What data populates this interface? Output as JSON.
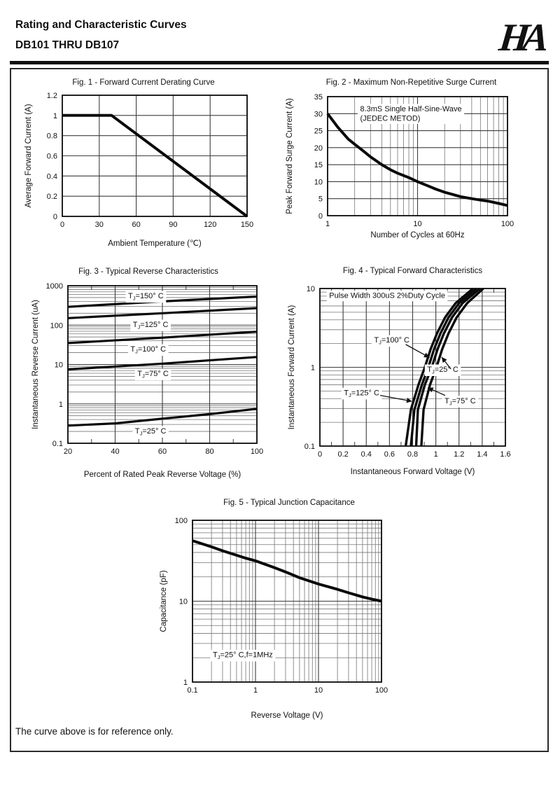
{
  "page": {
    "header": {
      "title": "Rating and Characteristic Curves",
      "subtitle": "DB101 THRU DB107",
      "logo_text": "HA"
    },
    "footer_note": "The curve above is for reference only."
  },
  "chart_data": [
    {
      "type": "line",
      "title": "Fig. 1 - Forward Current Derating Curve",
      "xlabel": "Ambient Temperature (℃)",
      "ylabel": "Average Forward Current (A)",
      "x": {
        "scale": "linear",
        "min": 0,
        "max": 150,
        "ticks": [
          [
            0,
            "0"
          ],
          [
            30,
            "30"
          ],
          [
            60,
            "60"
          ],
          [
            90,
            "90"
          ],
          [
            120,
            "120"
          ],
          [
            150,
            "150"
          ]
        ]
      },
      "y": {
        "scale": "linear",
        "min": 0,
        "max": 1.2,
        "ticks": [
          [
            0,
            "0"
          ],
          [
            0.2,
            "0.2"
          ],
          [
            0.4,
            "0.4"
          ],
          [
            0.6,
            "0.6"
          ],
          [
            0.8,
            "0.8"
          ],
          [
            1,
            "1"
          ],
          [
            1.2,
            "1.2"
          ]
        ]
      },
      "grid": true,
      "series": [
        {
          "name": "average-forward-current",
          "stroke_width": 4,
          "points": [
            [
              0,
              1
            ],
            [
              40,
              1
            ],
            [
              150,
              0
            ]
          ]
        }
      ],
      "annotations": []
    },
    {
      "type": "line",
      "title": "Fig. 2 - Maximum Non-Repetitive Surge Current",
      "xlabel": "Number of Cycles at 60Hz",
      "ylabel": "Peak Forward Surge Current (A)",
      "x": {
        "scale": "log",
        "min": 1,
        "max": 100,
        "minor": "lines",
        "ticks": [
          [
            1,
            "1"
          ],
          [
            10,
            "10"
          ],
          [
            100,
            "100"
          ]
        ]
      },
      "y": {
        "scale": "linear",
        "min": 0,
        "max": 35,
        "ticks": [
          [
            0,
            "0"
          ],
          [
            5,
            "5"
          ],
          [
            10,
            "10"
          ],
          [
            15,
            "15"
          ],
          [
            20,
            "20"
          ],
          [
            25,
            "25"
          ],
          [
            30,
            "30"
          ],
          [
            35,
            "35"
          ]
        ]
      },
      "grid": true,
      "series": [
        {
          "name": "peak-forward-surge-current",
          "stroke_width": 4,
          "points": [
            [
              1,
              30
            ],
            [
              1.3,
              26
            ],
            [
              1.7,
              22.5
            ],
            [
              2,
              21
            ],
            [
              2.5,
              19
            ],
            [
              3,
              17.3
            ],
            [
              4,
              15
            ],
            [
              5,
              13.5
            ],
            [
              6,
              12.5
            ],
            [
              8,
              11.2
            ],
            [
              10,
              10
            ],
            [
              13,
              8.8
            ],
            [
              16,
              7.8
            ],
            [
              20,
              6.9
            ],
            [
              25,
              6.2
            ],
            [
              30,
              5.6
            ],
            [
              40,
              5
            ],
            [
              50,
              4.6
            ],
            [
              60,
              4.3
            ],
            [
              80,
              3.6
            ],
            [
              100,
              3
            ]
          ]
        }
      ],
      "annotations": [
        {
          "text": "8.3mS Single Half-Sine-Wave\n(JEDEC METOD)",
          "x": 2.3,
          "y": 31.5,
          "anchor": "start",
          "bg": true
        }
      ]
    },
    {
      "type": "line",
      "title": "Fig. 3 - Typical Reverse Characteristics",
      "xlabel": "Percent of Rated Peak Reverse Voltage (%)",
      "ylabel": "Instantaneous Reverse Current (uA)",
      "x": {
        "scale": "linear",
        "min": 20,
        "max": 100,
        "minor_step": 10,
        "ticks": [
          [
            20,
            "20"
          ],
          [
            40,
            "40"
          ],
          [
            60,
            "60"
          ],
          [
            80,
            "80"
          ],
          [
            100,
            "100"
          ]
        ]
      },
      "y": {
        "scale": "log",
        "min": 0.1,
        "max": 1000,
        "minor": "lines",
        "ticks": [
          [
            0.1,
            "0.1"
          ],
          [
            1,
            "1"
          ],
          [
            10,
            "10"
          ],
          [
            100,
            "100"
          ],
          [
            1000,
            "1000"
          ]
        ]
      },
      "grid": true,
      "series": [
        {
          "name": "tj-150c",
          "stroke_width": 3.2,
          "points": [
            [
              20,
              290
            ],
            [
              60,
              400
            ],
            [
              100,
              530
            ]
          ]
        },
        {
          "name": "tj-125c",
          "stroke_width": 3.2,
          "points": [
            [
              20,
              150
            ],
            [
              60,
              200
            ],
            [
              100,
              270
            ]
          ]
        },
        {
          "name": "tj-100c",
          "stroke_width": 3.2,
          "points": [
            [
              20,
              35
            ],
            [
              60,
              48
            ],
            [
              100,
              68
            ]
          ]
        },
        {
          "name": "tj-75c",
          "stroke_width": 3.2,
          "points": [
            [
              20,
              7.5
            ],
            [
              60,
              10.5
            ],
            [
              100,
              15.5
            ]
          ]
        },
        {
          "name": "tj-25c",
          "stroke_width": 3.2,
          "points": [
            [
              20,
              0.28
            ],
            [
              40,
              0.32
            ],
            [
              60,
              0.42
            ],
            [
              80,
              0.55
            ],
            [
              100,
              0.75
            ]
          ]
        }
      ],
      "annotations": [
        {
          "text": "T~J~=150°  C",
          "x": 53,
          "y": 560,
          "bg": true
        },
        {
          "text": "T~J~=125°  C",
          "x": 55,
          "y": 105,
          "bg": true
        },
        {
          "text": "T~J~=100°  C",
          "x": 54,
          "y": 25,
          "bg": true
        },
        {
          "text": "T~J~=75°  C",
          "x": 56,
          "y": 6,
          "bg": true
        },
        {
          "text": "T~J~=25°  C",
          "x": 55,
          "y": 0.21,
          "bg": true
        }
      ]
    },
    {
      "type": "line",
      "title": "Fig. 4 - Typical Forward Characteristics",
      "xlabel": "Instantaneous Forward Voltage (V)",
      "ylabel": "Instantaneous Forward Current (A)",
      "x": {
        "scale": "linear",
        "min": 0,
        "max": 1.6,
        "minor_step": 0.1,
        "ticks": [
          [
            0,
            "0"
          ],
          [
            0.2,
            "0.2"
          ],
          [
            0.4,
            "0.4"
          ],
          [
            0.6,
            "0.6"
          ],
          [
            0.8,
            "0.8"
          ],
          [
            1,
            "1"
          ],
          [
            1.2,
            "1.2"
          ],
          [
            1.4,
            "1.4"
          ],
          [
            1.6,
            "1.6"
          ]
        ]
      },
      "y": {
        "scale": "log",
        "min": 0.1,
        "max": 10,
        "minor": "lines",
        "ticks": [
          [
            0.1,
            "0.1"
          ],
          [
            1,
            "1"
          ],
          [
            10,
            "10"
          ]
        ]
      },
      "grid": true,
      "series": [
        {
          "name": "tj-125c",
          "stroke_width": 3.4,
          "points": [
            [
              0.74,
              0.1
            ],
            [
              0.785,
              0.29
            ],
            [
              0.85,
              0.6
            ],
            [
              0.905,
              1
            ],
            [
              0.955,
              1.7
            ],
            [
              1.01,
              2.7
            ],
            [
              1.08,
              4.3
            ],
            [
              1.17,
              6.5
            ],
            [
              1.32,
              10
            ]
          ]
        },
        {
          "name": "tj-100c",
          "stroke_width": 3.4,
          "points": [
            [
              0.785,
              0.1
            ],
            [
              0.815,
              0.29
            ],
            [
              0.88,
              0.6
            ],
            [
              0.935,
              1
            ],
            [
              0.985,
              1.7
            ],
            [
              1.04,
              2.7
            ],
            [
              1.11,
              4.3
            ],
            [
              1.2,
              6.5
            ],
            [
              1.35,
              10
            ]
          ]
        },
        {
          "name": "tj-75c",
          "stroke_width": 3.4,
          "points": [
            [
              0.83,
              0.1
            ],
            [
              0.845,
              0.29
            ],
            [
              0.905,
              0.6
            ],
            [
              0.965,
              1
            ],
            [
              1.015,
              1.7
            ],
            [
              1.07,
              2.7
            ],
            [
              1.14,
              4.3
            ],
            [
              1.23,
              6.5
            ],
            [
              1.38,
              10
            ]
          ]
        },
        {
          "name": "tj-25c",
          "stroke_width": 3.4,
          "points": [
            [
              0.875,
              0.1
            ],
            [
              0.894,
              0.29
            ],
            [
              0.95,
              0.6
            ],
            [
              1.005,
              1
            ],
            [
              1.055,
              1.7
            ],
            [
              1.11,
              2.7
            ],
            [
              1.18,
              4.3
            ],
            [
              1.27,
              6.5
            ],
            [
              1.41,
              10
            ]
          ]
        }
      ],
      "annotations": [
        {
          "text": "Pulse Width 300uS 2%Duty Cycle",
          "x": 0.08,
          "y": 8.2,
          "anchor": "start",
          "bg": true
        },
        {
          "text": "T~J~=100°  C",
          "x": 0.62,
          "y": 2.24,
          "bg": true
        },
        {
          "text": "T~J~=25°  C",
          "x": 1.06,
          "y": 0.95,
          "bg": true
        },
        {
          "text": "T~J~=125°  C",
          "x": 0.36,
          "y": 0.48,
          "bg": true
        },
        {
          "text": "T~J~=75°  C",
          "x": 1.21,
          "y": 0.38,
          "bg": true
        },
        {
          "arrow": {
            "from": [
              0.74,
              1.95
            ],
            "to": [
              0.945,
              1.33
            ]
          }
        },
        {
          "arrow": {
            "from": [
              1.13,
              0.95
            ],
            "to": [
              1.05,
              1.35
            ]
          }
        },
        {
          "arrow": {
            "from": [
              0.52,
              0.44
            ],
            "to": [
              0.795,
              0.37
            ]
          }
        },
        {
          "arrow": {
            "from": [
              1.08,
              0.44
            ],
            "to": [
              0.93,
              0.55
            ]
          }
        }
      ]
    },
    {
      "type": "line",
      "title": "Fig. 5 - Typical Junction Capacitance",
      "xlabel": "Reverse Voltage (V)",
      "ylabel": "Capacitance (pF)",
      "x": {
        "scale": "log",
        "min": 0.1,
        "max": 100,
        "minor": "lines",
        "ticks": [
          [
            0.1,
            "0.1"
          ],
          [
            1,
            "1"
          ],
          [
            10,
            "10"
          ],
          [
            100,
            "100"
          ]
        ]
      },
      "y": {
        "scale": "log",
        "min": 1,
        "max": 100,
        "minor": "lines",
        "ticks": [
          [
            1,
            "1"
          ],
          [
            10,
            "10"
          ],
          [
            100,
            "100"
          ]
        ]
      },
      "grid": true,
      "series": [
        {
          "name": "junction-capacitance",
          "stroke_width": 4,
          "points": [
            [
              0.1,
              56
            ],
            [
              0.2,
              47
            ],
            [
              0.3,
              42
            ],
            [
              0.5,
              37
            ],
            [
              0.7,
              34
            ],
            [
              1,
              31.5
            ],
            [
              2,
              26
            ],
            [
              3,
              23
            ],
            [
              5,
              19.5
            ],
            [
              10,
              16.3
            ],
            [
              20,
              14
            ],
            [
              30,
              12.7
            ],
            [
              50,
              11.3
            ],
            [
              70,
              10.6
            ],
            [
              100,
              10
            ]
          ]
        }
      ],
      "annotations": [
        {
          "text": "T~J~=25°  C,f=1MHz",
          "x": 0.21,
          "y": 2.2,
          "anchor": "start",
          "bg": true
        }
      ]
    }
  ]
}
